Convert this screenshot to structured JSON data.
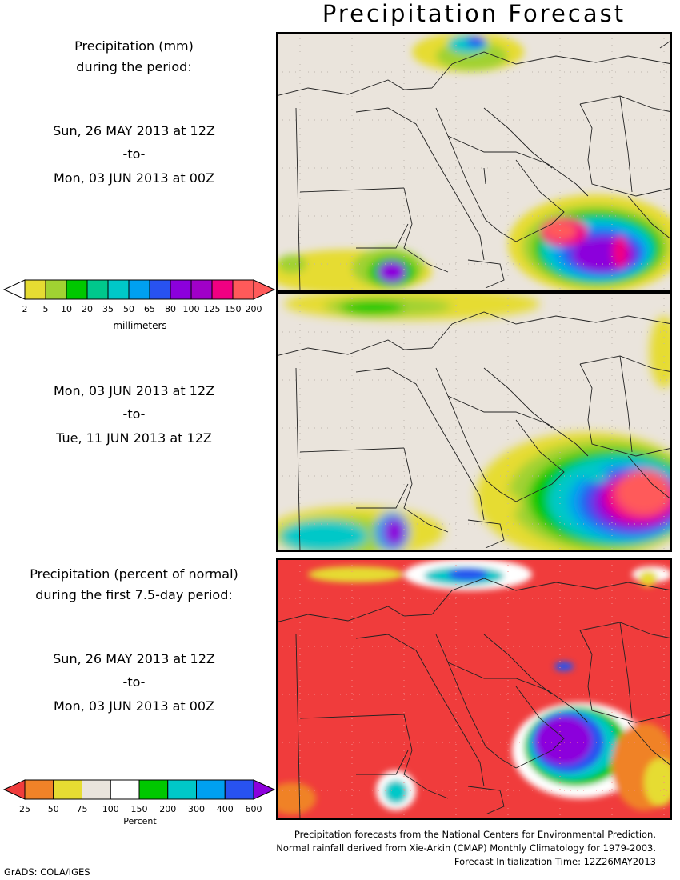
{
  "title": "Precipitation Forecast",
  "panel1": {
    "heading_line1": "Precipitation (mm)",
    "heading_line2": "during the period:",
    "start": "Sun, 26 MAY 2013 at 12Z",
    "to": "-to-",
    "end": "Mon, 03 JUN 2013 at 00Z"
  },
  "colorbar_mm": {
    "unit": "millimeters",
    "ticks": [
      "2",
      "5",
      "10",
      "20",
      "35",
      "50",
      "65",
      "80",
      "100",
      "125",
      "150",
      "200"
    ],
    "colors": [
      "#e6dc32",
      "#a0d232",
      "#00c800",
      "#00c88c",
      "#00c8c8",
      "#00a0f0",
      "#2852f0",
      "#8c00dc",
      "#a000c8",
      "#f00082",
      "#ff5a5a"
    ]
  },
  "panel2": {
    "start": "Mon, 03 JUN 2013 at 12Z",
    "to": "-to-",
    "end": "Tue, 11 JUN 2013 at 12Z"
  },
  "panel3": {
    "heading_line1": "Precipitation (percent of normal)",
    "heading_line2": "during the first 7.5-day period:",
    "start": "Sun, 26 MAY 2013 at 12Z",
    "to": "-to-",
    "end": "Mon, 03 JUN 2013 at 00Z"
  },
  "colorbar_pct": {
    "unit": "Percent",
    "ticks": [
      "25",
      "50",
      "75",
      "100",
      "150",
      "200",
      "300",
      "400",
      "600"
    ],
    "colors": [
      "#f08228",
      "#e6dc32",
      "#eae4dc",
      "#ffffff",
      "#00c800",
      "#00c8c8",
      "#00a0f0",
      "#2852f0"
    ],
    "left_arrow_color": "#f03c3c",
    "right_arrow_color": "#8c00dc"
  },
  "credits": [
    "Precipitation forecasts from the National Centers for Environmental Prediction.",
    "Normal rainfall derived from Xie-Arkin (CMAP) Monthly Climatology for 1979-2003.",
    "Forecast Initialization Time: 12Z26MAY2013"
  ],
  "software": "GrADS: COLA/IGES"
}
